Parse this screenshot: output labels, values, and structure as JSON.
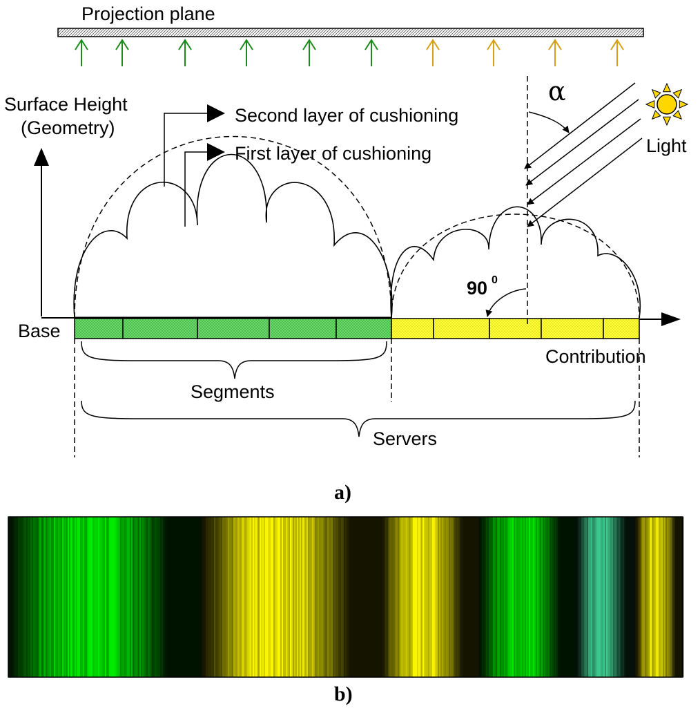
{
  "labels": {
    "projection_plane": "Projection plane",
    "surface_height_line1": "Surface Height",
    "surface_height_line2": "(Geometry)",
    "second_layer": "Second layer of cushioning",
    "first_layer": "First layer of cushioning",
    "light": "Light",
    "alpha": "α",
    "angle_90": "90",
    "angle_90_sup": "0",
    "base": "Base",
    "contribution": "Contribution",
    "segments": "Segments",
    "servers": "Servers",
    "panel_a": "a)",
    "panel_b": "b)"
  },
  "colors": {
    "green_segment": "#5bd35b",
    "yellow_segment": "#ffff33",
    "green_arrow": "#1a8a1a",
    "orange_arrow": "#d4a017",
    "sun": "#ffd700",
    "line": "#000000"
  },
  "icons": {
    "sun": "sun-icon",
    "projection_arrows": "up-arrow-icon"
  }
}
